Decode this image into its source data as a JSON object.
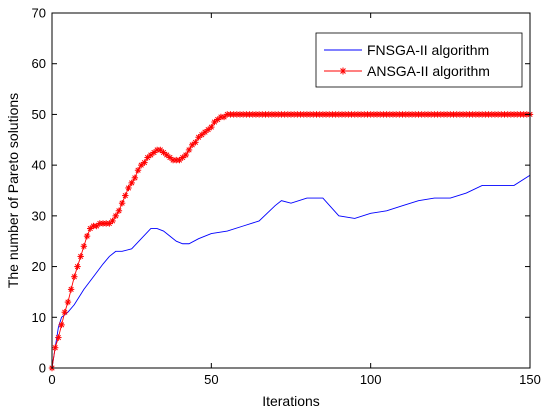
{
  "chart_data": {
    "type": "line",
    "title": "",
    "xlabel": "Iterations",
    "ylabel": "The number of Pareto solutions",
    "xlim": [
      0,
      150
    ],
    "ylim": [
      0,
      70
    ],
    "xticks": [
      0,
      50,
      100,
      150
    ],
    "yticks": [
      0,
      10,
      20,
      30,
      40,
      50,
      60,
      70
    ],
    "grid": false,
    "legend_position": "top-right",
    "series": [
      {
        "name": "FNSGA-II algorithm",
        "color": "#0000ff",
        "marker": "none",
        "x": [
          0,
          1,
          2,
          3,
          5,
          7,
          10,
          13,
          16,
          18,
          20,
          22,
          25,
          28,
          31,
          33,
          35,
          37,
          39,
          41,
          43,
          46,
          50,
          55,
          60,
          65,
          70,
          72,
          75,
          80,
          85,
          90,
          95,
          100,
          105,
          110,
          115,
          120,
          125,
          130,
          135,
          140,
          145,
          150
        ],
        "y": [
          0,
          4,
          8,
          10,
          11,
          12.5,
          15.5,
          18,
          20.5,
          22,
          23,
          23,
          23.5,
          25.5,
          27.5,
          27.5,
          27,
          26,
          25,
          24.5,
          24.5,
          25.5,
          26.5,
          27,
          28,
          29,
          32,
          33,
          32.5,
          33.5,
          33.5,
          30,
          29.5,
          30.5,
          31,
          32,
          33,
          33.5,
          33.5,
          34.5,
          36,
          36,
          36,
          38
        ]
      },
      {
        "name": "ANSGA-II algorithm",
        "color": "#ff0000",
        "marker": "asterisk",
        "x": [
          0,
          1,
          2,
          3,
          4,
          5,
          6,
          7,
          8,
          9,
          10,
          11,
          12,
          13,
          14,
          15,
          16,
          17,
          18,
          19,
          20,
          21,
          22,
          23,
          24,
          25,
          26,
          27,
          28,
          29,
          30,
          31,
          32,
          33,
          34,
          35,
          36,
          37,
          38,
          39,
          40,
          41,
          42,
          43,
          44,
          45,
          46,
          47,
          48,
          49,
          50,
          51,
          52,
          53,
          54,
          55,
          56,
          57,
          58,
          59,
          60,
          61,
          62,
          63,
          64,
          65,
          66,
          67,
          68,
          69,
          70,
          71,
          72,
          73,
          74,
          75,
          76,
          77,
          78,
          79,
          80,
          81,
          82,
          83,
          84,
          85,
          86,
          87,
          88,
          89,
          90,
          91,
          92,
          93,
          94,
          95,
          96,
          97,
          98,
          99,
          100,
          101,
          102,
          103,
          104,
          105,
          106,
          107,
          108,
          109,
          110,
          111,
          112,
          113,
          114,
          115,
          116,
          117,
          118,
          119,
          120,
          121,
          122,
          123,
          124,
          125,
          126,
          127,
          128,
          129,
          130,
          131,
          132,
          133,
          134,
          135,
          136,
          137,
          138,
          139,
          140,
          141,
          142,
          143,
          144,
          145,
          146,
          147,
          148,
          149,
          150
        ],
        "y": [
          0,
          4,
          6,
          8.5,
          11,
          13,
          15.5,
          18,
          20,
          22,
          24,
          26,
          27.5,
          28,
          28,
          28.5,
          28.5,
          28.5,
          28.5,
          29,
          30,
          31,
          32.5,
          34,
          35.5,
          36.5,
          37.5,
          39,
          40,
          40.5,
          41.5,
          42,
          42.5,
          43,
          43,
          42.5,
          42,
          41.5,
          41,
          41,
          41,
          41.5,
          42,
          43,
          44,
          44.5,
          45.5,
          46,
          46.5,
          47,
          47.5,
          48.5,
          49,
          49.5,
          49.5,
          50,
          50,
          50,
          50,
          50,
          50,
          50,
          50,
          50,
          50,
          50,
          50,
          50,
          50,
          50,
          50,
          50,
          50,
          50,
          50,
          50,
          50,
          50,
          50,
          50,
          50,
          50,
          50,
          50,
          50,
          50,
          50,
          50,
          50,
          50,
          50,
          50,
          50,
          50,
          50,
          50,
          50,
          50,
          50,
          50,
          50,
          50,
          50,
          50,
          50,
          50,
          50,
          50,
          50,
          50,
          50,
          50,
          50,
          50,
          50,
          50,
          50,
          50,
          50,
          50,
          50,
          50,
          50,
          50,
          50,
          50,
          50,
          50,
          50,
          50,
          50,
          50,
          50,
          50,
          50,
          50,
          50,
          50,
          50,
          50,
          50,
          50,
          50,
          50,
          50,
          50,
          50,
          50,
          50,
          50,
          50
        ]
      }
    ]
  }
}
